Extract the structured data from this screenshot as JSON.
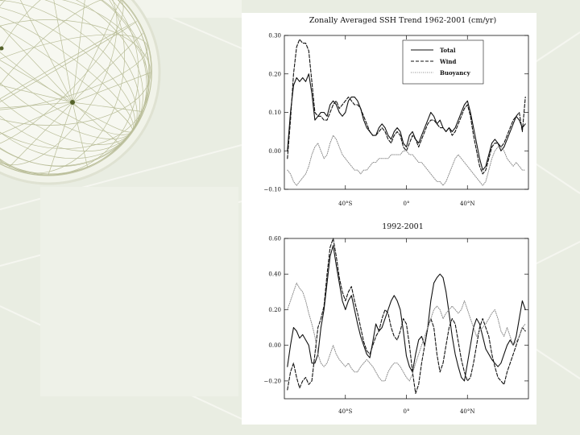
{
  "slide": {
    "background_color": "#e9ede2",
    "panel_color": "#eef1e8",
    "globe_line_color": "#b9bd98",
    "globe_dot_color": "#55622a"
  },
  "chart_data": [
    {
      "type": "line",
      "title": "Zonally Averaged SSH Trend 1962-2001 (cm/yr)",
      "xlabel": "",
      "ylabel": "",
      "xlim": [
        -80,
        80
      ],
      "ylim": [
        -0.1,
        0.3
      ],
      "x_ticks": [
        {
          "value": -40,
          "label": "40°S"
        },
        {
          "value": 0,
          "label": "0°"
        },
        {
          "value": 40,
          "label": "40°N"
        }
      ],
      "y_ticks": [
        {
          "value": 0.3,
          "label": "0.30"
        },
        {
          "value": 0.2,
          "label": "0.20"
        },
        {
          "value": 0.1,
          "label": "0.10"
        },
        {
          "value": 0.0,
          "label": "0.00"
        },
        {
          "value": -0.1,
          "label": "−0.10"
        }
      ],
      "legend": {
        "position": "top-right",
        "entries": [
          "Total",
          "Wind",
          "Buoyancy"
        ]
      },
      "x": [
        -78,
        -76,
        -74,
        -72,
        -70,
        -68,
        -66,
        -64,
        -62,
        -60,
        -58,
        -56,
        -54,
        -52,
        -50,
        -48,
        -46,
        -44,
        -42,
        -40,
        -38,
        -36,
        -34,
        -32,
        -30,
        -28,
        -26,
        -24,
        -22,
        -20,
        -18,
        -16,
        -14,
        -12,
        -10,
        -8,
        -6,
        -4,
        -2,
        0,
        2,
        4,
        6,
        8,
        10,
        12,
        14,
        16,
        18,
        20,
        22,
        24,
        26,
        28,
        30,
        32,
        34,
        36,
        38,
        40,
        42,
        44,
        46,
        48,
        50,
        52,
        54,
        56,
        58,
        60,
        62,
        64,
        66,
        68,
        70,
        72,
        74,
        76,
        78
      ],
      "series": [
        {
          "name": "Total",
          "style": "solid",
          "values": [
            0.0,
            0.1,
            0.17,
            0.19,
            0.18,
            0.19,
            0.18,
            0.2,
            0.15,
            0.08,
            0.09,
            0.1,
            0.1,
            0.09,
            0.12,
            0.13,
            0.12,
            0.1,
            0.09,
            0.1,
            0.13,
            0.14,
            0.14,
            0.13,
            0.11,
            0.08,
            0.06,
            0.05,
            0.04,
            0.04,
            0.06,
            0.07,
            0.06,
            0.04,
            0.03,
            0.05,
            0.06,
            0.05,
            0.02,
            0.01,
            0.04,
            0.05,
            0.03,
            0.02,
            0.04,
            0.06,
            0.08,
            0.1,
            0.09,
            0.07,
            0.08,
            0.06,
            0.05,
            0.06,
            0.05,
            0.06,
            0.08,
            0.1,
            0.12,
            0.13,
            0.1,
            0.06,
            0.02,
            -0.02,
            -0.05,
            -0.04,
            -0.01,
            0.02,
            0.03,
            0.02,
            0.0,
            0.01,
            0.03,
            0.05,
            0.07,
            0.09,
            0.08,
            0.06,
            0.07
          ]
        },
        {
          "name": "Wind",
          "style": "dashed",
          "values": [
            -0.02,
            0.08,
            0.2,
            0.27,
            0.29,
            0.28,
            0.28,
            0.26,
            0.18,
            0.1,
            0.09,
            0.09,
            0.08,
            0.08,
            0.1,
            0.12,
            0.13,
            0.11,
            0.12,
            0.13,
            0.14,
            0.13,
            0.12,
            0.12,
            0.11,
            0.09,
            0.07,
            0.05,
            0.04,
            0.04,
            0.05,
            0.06,
            0.05,
            0.03,
            0.02,
            0.04,
            0.05,
            0.04,
            0.01,
            0.0,
            0.02,
            0.04,
            0.03,
            0.01,
            0.03,
            0.05,
            0.07,
            0.08,
            0.08,
            0.07,
            0.06,
            0.06,
            0.05,
            0.06,
            0.04,
            0.05,
            0.07,
            0.09,
            0.11,
            0.12,
            0.09,
            0.04,
            0.0,
            -0.04,
            -0.06,
            -0.05,
            -0.02,
            0.01,
            0.02,
            0.02,
            0.01,
            0.02,
            0.04,
            0.06,
            0.08,
            0.09,
            0.1,
            0.05,
            0.14
          ]
        },
        {
          "name": "Buoyancy",
          "style": "dotted",
          "values": [
            -0.05,
            -0.06,
            -0.08,
            -0.09,
            -0.08,
            -0.07,
            -0.06,
            -0.04,
            -0.01,
            0.01,
            0.02,
            0.0,
            -0.02,
            -0.01,
            0.02,
            0.04,
            0.03,
            0.01,
            -0.01,
            -0.02,
            -0.03,
            -0.04,
            -0.05,
            -0.05,
            -0.06,
            -0.05,
            -0.05,
            -0.04,
            -0.03,
            -0.03,
            -0.02,
            -0.02,
            -0.02,
            -0.02,
            -0.01,
            -0.01,
            -0.01,
            -0.01,
            0.0,
            0.0,
            -0.01,
            -0.01,
            -0.02,
            -0.03,
            -0.03,
            -0.04,
            -0.05,
            -0.06,
            -0.07,
            -0.08,
            -0.08,
            -0.09,
            -0.08,
            -0.06,
            -0.04,
            -0.02,
            -0.01,
            -0.02,
            -0.03,
            -0.04,
            -0.05,
            -0.06,
            -0.07,
            -0.08,
            -0.09,
            -0.08,
            -0.05,
            -0.02,
            0.0,
            0.01,
            0.01,
            0.0,
            -0.02,
            -0.03,
            -0.04,
            -0.03,
            -0.04,
            -0.05,
            -0.05
          ]
        }
      ]
    },
    {
      "type": "line",
      "title": "1992-2001",
      "xlabel": "",
      "ylabel": "",
      "xlim": [
        -80,
        80
      ],
      "ylim": [
        -0.3,
        0.6
      ],
      "x_ticks": [
        {
          "value": -40,
          "label": "40°S"
        },
        {
          "value": 0,
          "label": "0°"
        },
        {
          "value": 40,
          "label": "40°N"
        }
      ],
      "y_ticks": [
        {
          "value": 0.6,
          "label": "0.60"
        },
        {
          "value": 0.4,
          "label": "0.40"
        },
        {
          "value": 0.2,
          "label": "0.20"
        },
        {
          "value": 0.0,
          "label": "0.00"
        },
        {
          "value": -0.2,
          "label": "−0.20"
        }
      ],
      "x": [
        -78,
        -76,
        -74,
        -72,
        -70,
        -68,
        -66,
        -64,
        -62,
        -60,
        -58,
        -56,
        -54,
        -52,
        -50,
        -48,
        -46,
        -44,
        -42,
        -40,
        -38,
        -36,
        -34,
        -32,
        -30,
        -28,
        -26,
        -24,
        -22,
        -20,
        -18,
        -16,
        -14,
        -12,
        -10,
        -8,
        -6,
        -4,
        -2,
        0,
        2,
        4,
        6,
        8,
        10,
        12,
        14,
        16,
        18,
        20,
        22,
        24,
        26,
        28,
        30,
        32,
        34,
        36,
        38,
        40,
        42,
        44,
        46,
        48,
        50,
        52,
        54,
        56,
        58,
        60,
        62,
        64,
        66,
        68,
        70,
        72,
        74,
        76,
        78
      ],
      "series": [
        {
          "name": "Total",
          "style": "solid",
          "values": [
            -0.12,
            0.0,
            0.1,
            0.08,
            0.04,
            0.06,
            0.03,
            0.0,
            -0.1,
            -0.1,
            -0.05,
            0.1,
            0.2,
            0.35,
            0.5,
            0.56,
            0.45,
            0.35,
            0.25,
            0.2,
            0.25,
            0.28,
            0.2,
            0.12,
            0.05,
            0.0,
            -0.05,
            -0.07,
            0.02,
            0.12,
            0.08,
            0.1,
            0.15,
            0.2,
            0.25,
            0.28,
            0.25,
            0.2,
            0.08,
            -0.06,
            -0.12,
            -0.15,
            -0.05,
            0.03,
            0.05,
            0.0,
            0.1,
            0.25,
            0.35,
            0.38,
            0.4,
            0.38,
            0.3,
            0.18,
            0.05,
            -0.05,
            -0.12,
            -0.18,
            -0.2,
            -0.1,
            0.0,
            0.1,
            0.15,
            0.12,
            0.05,
            -0.02,
            -0.05,
            -0.08,
            -0.1,
            -0.12,
            -0.1,
            -0.05,
            0.0,
            0.03,
            0.0,
            0.05,
            0.15,
            0.25,
            0.2
          ]
        },
        {
          "name": "Wind",
          "style": "dashed",
          "values": [
            -0.25,
            -0.15,
            -0.1,
            -0.18,
            -0.24,
            -0.2,
            -0.18,
            -0.22,
            -0.2,
            -0.05,
            0.1,
            0.15,
            0.22,
            0.4,
            0.55,
            0.6,
            0.5,
            0.38,
            0.3,
            0.25,
            0.3,
            0.33,
            0.25,
            0.18,
            0.1,
            0.02,
            -0.03,
            -0.05,
            0.0,
            0.05,
            0.08,
            0.15,
            0.2,
            0.18,
            0.1,
            0.05,
            0.03,
            0.08,
            0.15,
            0.12,
            0.0,
            -0.15,
            -0.27,
            -0.22,
            -0.1,
            0.0,
            0.1,
            0.15,
            0.1,
            -0.05,
            -0.15,
            -0.1,
            0.0,
            0.1,
            0.15,
            0.12,
            0.02,
            -0.08,
            -0.15,
            -0.2,
            -0.18,
            -0.1,
            0.0,
            0.1,
            0.15,
            0.1,
            0.05,
            -0.05,
            -0.12,
            -0.18,
            -0.2,
            -0.22,
            -0.15,
            -0.1,
            -0.05,
            0.0,
            0.05,
            0.1,
            0.08
          ]
        },
        {
          "name": "Buoyancy",
          "style": "dotted",
          "values": [
            0.2,
            0.25,
            0.3,
            0.35,
            0.32,
            0.3,
            0.25,
            0.18,
            0.12,
            0.05,
            -0.05,
            -0.1,
            -0.12,
            -0.1,
            -0.05,
            0.0,
            -0.05,
            -0.08,
            -0.1,
            -0.12,
            -0.1,
            -0.13,
            -0.15,
            -0.15,
            -0.12,
            -0.1,
            -0.08,
            -0.1,
            -0.12,
            -0.15,
            -0.18,
            -0.2,
            -0.2,
            -0.15,
            -0.12,
            -0.1,
            -0.1,
            -0.12,
            -0.15,
            -0.18,
            -0.2,
            -0.16,
            -0.1,
            -0.05,
            0.0,
            0.05,
            0.1,
            0.15,
            0.2,
            0.22,
            0.2,
            0.15,
            0.18,
            0.2,
            0.22,
            0.2,
            0.18,
            0.2,
            0.25,
            0.2,
            0.15,
            0.1,
            0.05,
            0.08,
            0.1,
            0.12,
            0.15,
            0.18,
            0.2,
            0.15,
            0.08,
            0.05,
            0.1,
            0.05,
            0.0,
            0.02,
            0.05,
            0.1,
            0.12
          ]
        }
      ]
    }
  ]
}
